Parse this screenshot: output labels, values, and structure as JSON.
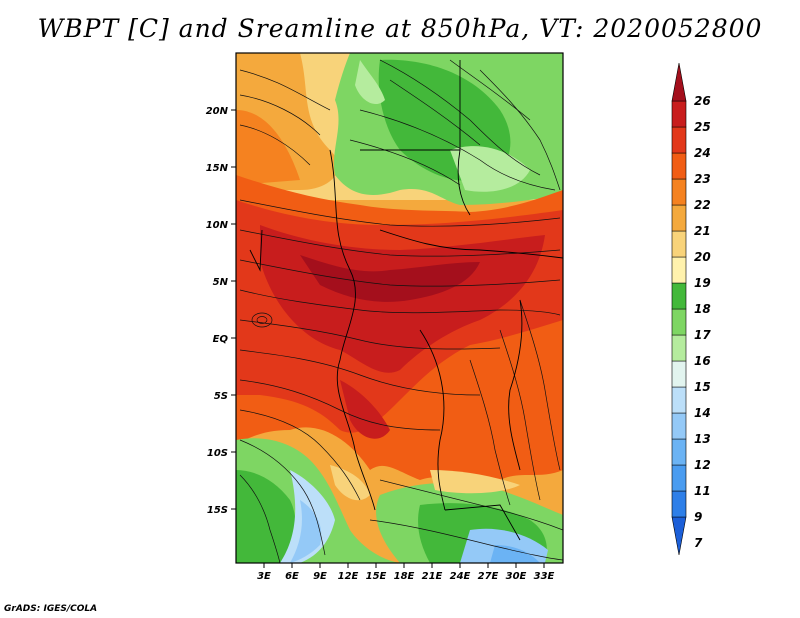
{
  "title": "WBPT [C] and Sreamline at 850hPa, VT: 2020052800",
  "credit": "GrADS: IGES/COLA",
  "map": {
    "variable": "WBPT",
    "units": "C",
    "level": "850hPa",
    "valid_time": "2020052800",
    "lon_labels": [
      "3E",
      "6E",
      "9E",
      "12E",
      "15E",
      "18E",
      "21E",
      "24E",
      "27E",
      "30E",
      "33E"
    ],
    "lat_labels": [
      "20N",
      "15N",
      "10N",
      "5N",
      "EQ",
      "5S",
      "10S",
      "15S"
    ]
  },
  "colorbar": {
    "levels": [
      "7",
      "9",
      "11",
      "12",
      "13",
      "14",
      "15",
      "16",
      "17",
      "18",
      "19",
      "20",
      "21",
      "22",
      "23",
      "24",
      "25",
      "26"
    ],
    "colors": [
      "#1c5fd8",
      "#2e7fe8",
      "#4a9cf0",
      "#6bb3f4",
      "#94c9f7",
      "#bcdff9",
      "#e2f4ef",
      "#b5ec9e",
      "#7ed663",
      "#43b83a",
      "#fff2ad",
      "#f8d37a",
      "#f4a93d",
      "#f58220",
      "#f15d14",
      "#e2381a",
      "#c81d1d",
      "#a40f1c"
    ]
  }
}
